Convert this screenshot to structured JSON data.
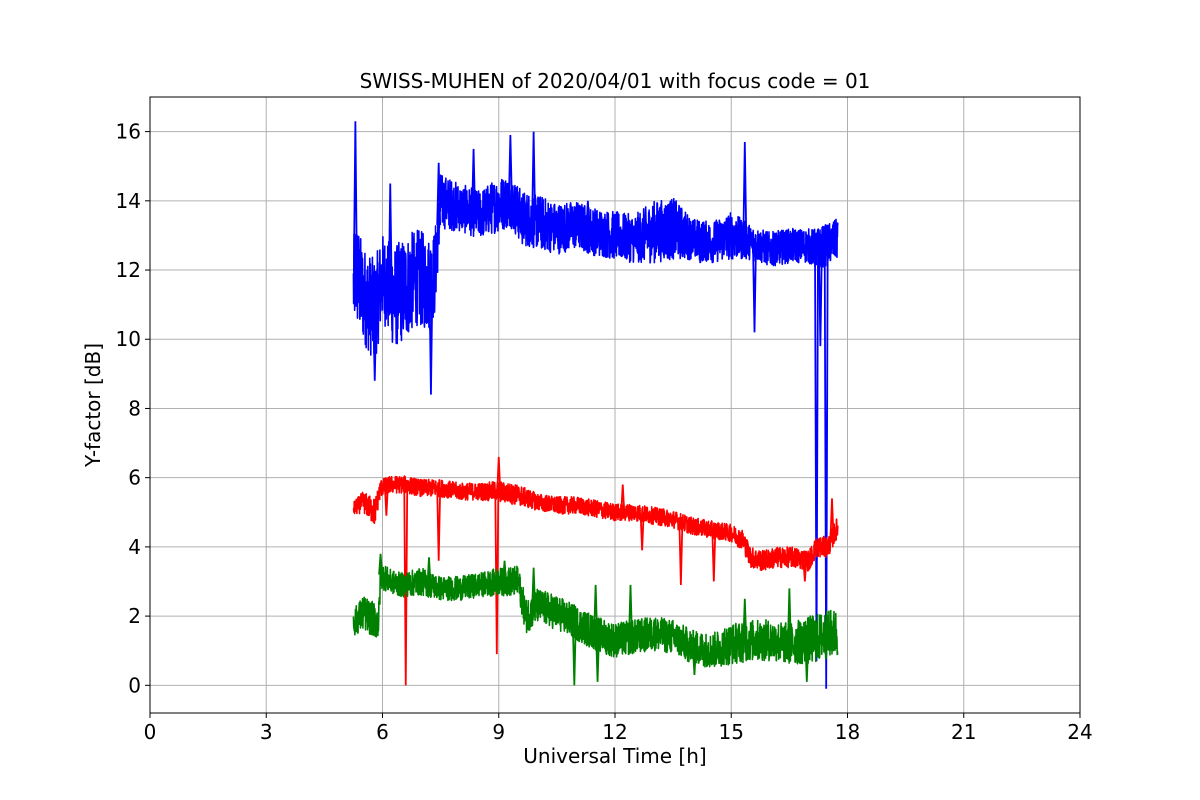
{
  "chart_data": {
    "type": "line",
    "title": "SWISS-MUHEN of 2020/04/01 with focus code = 01",
    "xlabel": "Universal Time [h]",
    "ylabel": "Y-factor [dB]",
    "xlim": [
      0,
      24
    ],
    "ylim": [
      -0.8,
      17
    ],
    "xticks": [
      "0",
      "3",
      "6",
      "9",
      "12",
      "15",
      "18",
      "21",
      "24"
    ],
    "yticks": [
      "0",
      "2",
      "4",
      "6",
      "8",
      "10",
      "12",
      "14",
      "16"
    ],
    "grid": true,
    "series": [
      {
        "color": "#0000ff",
        "x": [
          5.25,
          5.3,
          5.5,
          5.8,
          6.0,
          6.3,
          6.6,
          6.9,
          7.2,
          7.35,
          7.5,
          8.0,
          8.5,
          9.0,
          9.3,
          9.6,
          10.0,
          10.5,
          11.0,
          11.5,
          12.0,
          12.5,
          13.0,
          13.5,
          14.0,
          14.5,
          15.0,
          15.5,
          16.0,
          16.5,
          17.0,
          17.2,
          17.4,
          17.6,
          17.75
        ],
        "y": [
          11.5,
          12.0,
          11.3,
          10.8,
          11.8,
          11.2,
          11.5,
          11.8,
          11.6,
          11.9,
          14.0,
          13.8,
          13.6,
          13.9,
          14.0,
          13.5,
          13.4,
          13.2,
          13.3,
          13.1,
          13.0,
          12.9,
          13.1,
          13.2,
          12.9,
          12.8,
          13.0,
          12.8,
          12.6,
          12.7,
          12.7,
          12.6,
          12.7,
          12.8,
          12.9
        ],
        "band": [
          2.6,
          3.2,
          2.8,
          3.0,
          2.5,
          3.0,
          3.0,
          2.8,
          2.8,
          2.5,
          1.6,
          1.4,
          1.4,
          1.6,
          1.5,
          1.6,
          1.6,
          1.5,
          1.4,
          1.4,
          1.4,
          1.4,
          1.8,
          1.8,
          1.2,
          1.2,
          1.4,
          1.0,
          1.0,
          1.0,
          1.0,
          1.2,
          1.2,
          1.2,
          1.2
        ],
        "spikes": [
          [
            5.3,
            16.3
          ],
          [
            5.8,
            8.8
          ],
          [
            6.2,
            14.5
          ],
          [
            7.25,
            8.4
          ],
          [
            7.45,
            15.1
          ],
          [
            8.35,
            15.5
          ],
          [
            9.3,
            15.9
          ],
          [
            9.9,
            16.0
          ],
          [
            11.3,
            14.0
          ],
          [
            15.6,
            10.2
          ],
          [
            15.35,
            15.7
          ],
          [
            14.2,
            12.2
          ],
          [
            17.2,
            0.7
          ],
          [
            17.3,
            9.8
          ],
          [
            17.45,
            -0.1
          ]
        ]
      },
      {
        "color": "#ff0000",
        "x": [
          5.25,
          5.5,
          5.8,
          5.95,
          6.2,
          6.6,
          7.0,
          7.5,
          8.0,
          8.5,
          9.0,
          9.5,
          10.0,
          10.5,
          11.0,
          11.5,
          12.0,
          12.5,
          13.0,
          13.5,
          14.0,
          14.5,
          15.0,
          15.3,
          15.5,
          15.8,
          16.2,
          16.6,
          17.0,
          17.2,
          17.5,
          17.75
        ],
        "y": [
          5.1,
          5.3,
          5.0,
          5.7,
          5.8,
          5.8,
          5.7,
          5.7,
          5.6,
          5.6,
          5.6,
          5.5,
          5.3,
          5.2,
          5.2,
          5.1,
          5.0,
          5.0,
          4.9,
          4.8,
          4.6,
          4.5,
          4.4,
          4.2,
          3.7,
          3.6,
          3.7,
          3.7,
          3.6,
          4.0,
          4.0,
          4.6
        ],
        "band": [
          0.4,
          0.6,
          0.8,
          0.5,
          0.5,
          0.5,
          0.5,
          0.5,
          0.5,
          0.5,
          0.6,
          0.6,
          0.5,
          0.5,
          0.5,
          0.5,
          0.5,
          0.5,
          0.5,
          0.5,
          0.5,
          0.5,
          0.5,
          0.6,
          0.6,
          0.6,
          0.6,
          0.6,
          0.6,
          0.6,
          0.6,
          0.6
        ],
        "spikes": [
          [
            6.1,
            4.9
          ],
          [
            6.6,
            0.0
          ],
          [
            7.45,
            3.6
          ],
          [
            8.95,
            0.9
          ],
          [
            9.0,
            6.6
          ],
          [
            12.2,
            5.8
          ],
          [
            12.7,
            3.9
          ],
          [
            13.7,
            2.9
          ],
          [
            14.55,
            3.0
          ],
          [
            16.9,
            3.0
          ],
          [
            17.6,
            5.4
          ]
        ]
      },
      {
        "color": "#008000",
        "x": [
          5.25,
          5.5,
          5.9,
          5.95,
          6.2,
          6.5,
          7.0,
          7.5,
          8.0,
          8.5,
          9.0,
          9.5,
          9.7,
          10.0,
          10.5,
          11.0,
          11.5,
          12.0,
          12.5,
          13.0,
          13.5,
          14.0,
          14.5,
          15.0,
          15.5,
          16.0,
          16.5,
          17.0,
          17.3,
          17.6,
          17.75
        ],
        "y": [
          1.8,
          2.1,
          1.8,
          3.2,
          3.0,
          2.9,
          3.0,
          2.8,
          2.8,
          2.9,
          3.0,
          3.0,
          2.0,
          2.3,
          2.1,
          1.8,
          1.5,
          1.3,
          1.4,
          1.5,
          1.4,
          1.1,
          1.0,
          1.2,
          1.3,
          1.3,
          1.2,
          1.3,
          1.4,
          1.5,
          1.5
        ],
        "band": [
          0.8,
          1.0,
          1.0,
          0.8,
          0.7,
          0.7,
          0.8,
          0.7,
          0.7,
          0.7,
          0.8,
          0.9,
          1.0,
          1.0,
          1.0,
          1.0,
          1.0,
          1.0,
          1.0,
          1.0,
          1.0,
          1.0,
          1.0,
          1.2,
          1.2,
          1.2,
          1.2,
          1.4,
          1.4,
          1.4,
          1.4
        ],
        "spikes": [
          [
            5.95,
            3.8
          ],
          [
            7.2,
            3.7
          ],
          [
            9.15,
            3.6
          ],
          [
            9.9,
            3.4
          ],
          [
            10.95,
            0.0
          ],
          [
            11.5,
            2.9
          ],
          [
            11.55,
            0.1
          ],
          [
            12.4,
            2.9
          ],
          [
            14.05,
            0.3
          ],
          [
            15.35,
            2.5
          ],
          [
            16.5,
            2.8
          ],
          [
            16.95,
            0.1
          ]
        ]
      }
    ]
  }
}
